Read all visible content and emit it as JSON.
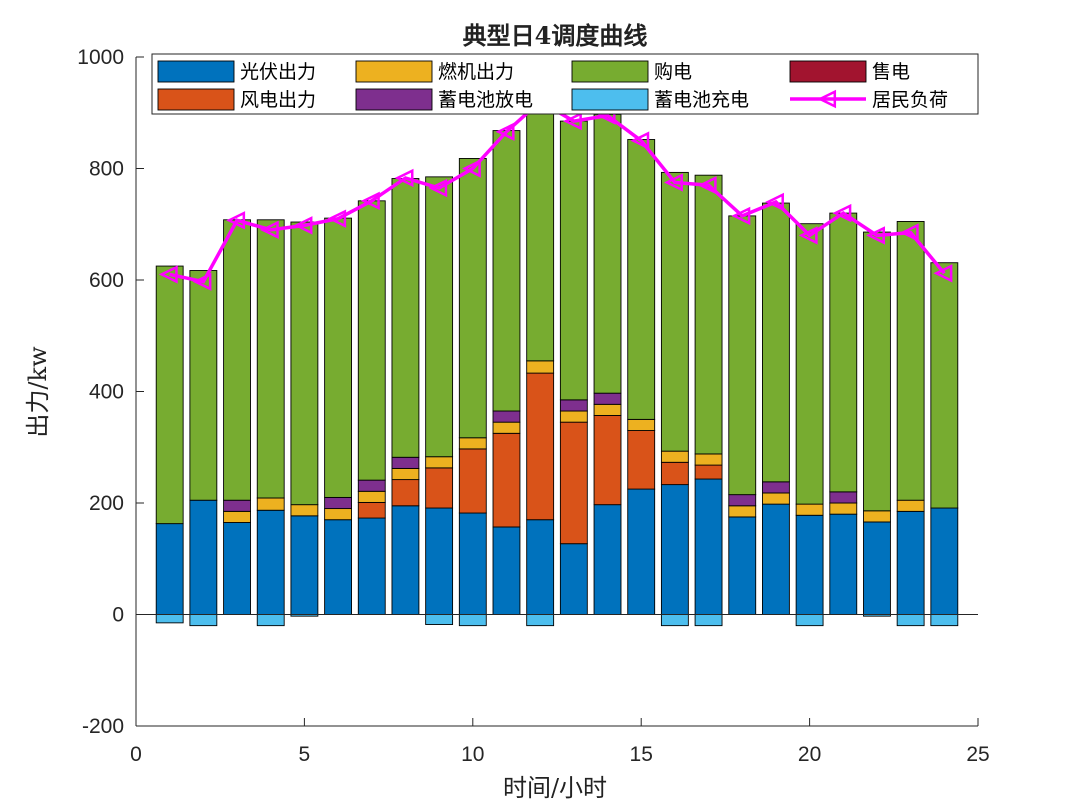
{
  "chart_data": {
    "type": "bar",
    "title": "典型日4调度曲线",
    "xlabel": "时间/小时",
    "ylabel": "出力/kw",
    "xlim": [
      0,
      25
    ],
    "ylim": [
      -200,
      1000
    ],
    "xticks": [
      0,
      5,
      10,
      15,
      20,
      25
    ],
    "yticks": [
      -200,
      0,
      200,
      400,
      600,
      800,
      1000
    ],
    "grid": false,
    "legend_position": "top",
    "x": [
      1,
      2,
      3,
      4,
      5,
      6,
      7,
      8,
      9,
      10,
      11,
      12,
      13,
      14,
      15,
      16,
      17,
      18,
      19,
      20,
      21,
      22,
      23,
      24
    ],
    "series": [
      {
        "name": "光伏出力",
        "color": "#0072BD",
        "values": [
          163,
          205,
          165,
          187,
          177,
          170,
          173,
          195,
          191,
          182,
          157,
          170,
          127,
          197,
          225,
          233,
          243,
          175,
          198,
          178,
          180,
          166,
          185,
          191
        ]
      },
      {
        "name": "风电出力",
        "color": "#D95319",
        "values": [
          0,
          0,
          0,
          0,
          0,
          0,
          28,
          47,
          72,
          115,
          168,
          263,
          218,
          160,
          105,
          40,
          25,
          0,
          0,
          0,
          0,
          0,
          0,
          0
        ]
      },
      {
        "name": "燃机出力",
        "color": "#EDB120",
        "values": [
          0,
          0,
          20,
          22,
          20,
          20,
          20,
          20,
          20,
          20,
          20,
          22,
          20,
          20,
          20,
          20,
          20,
          20,
          20,
          20,
          20,
          20,
          20,
          0
        ]
      },
      {
        "name": "蓄电池放电",
        "color": "#7E2F8E",
        "values": [
          0,
          0,
          20,
          0,
          0,
          20,
          20,
          20,
          0,
          0,
          20,
          0,
          20,
          20,
          0,
          0,
          0,
          20,
          20,
          0,
          20,
          0,
          0,
          0
        ]
      },
      {
        "name": "购电",
        "color": "#77AC30",
        "values": [
          462,
          412,
          503,
          499,
          507,
          501,
          501,
          500,
          502,
          501,
          503,
          455,
          500,
          500,
          502,
          500,
          500,
          500,
          500,
          503,
          500,
          500,
          500,
          440
        ]
      },
      {
        "name": "售电",
        "color": "#A2142F",
        "values": [
          0,
          0,
          0,
          0,
          0,
          0,
          0,
          0,
          0,
          0,
          0,
          0,
          0,
          0,
          0,
          0,
          0,
          0,
          0,
          0,
          0,
          0,
          0,
          0
        ]
      },
      {
        "name": "蓄电池充电",
        "color": "#4DBEEE",
        "values": [
          -15,
          -20,
          0,
          -20,
          -3,
          0,
          0,
          0,
          -18,
          -20,
          0,
          -20,
          0,
          0,
          0,
          -20,
          -20,
          0,
          0,
          -20,
          0,
          -3,
          -20,
          -20
        ]
      },
      {
        "name": "居民负荷",
        "type": "line",
        "color": "#FF00FF",
        "values": [
          610,
          597,
          707,
          690,
          698,
          710,
          742,
          783,
          765,
          800,
          866,
          920,
          885,
          895,
          850,
          775,
          770,
          715,
          740,
          680,
          720,
          680,
          685,
          612
        ]
      }
    ]
  }
}
